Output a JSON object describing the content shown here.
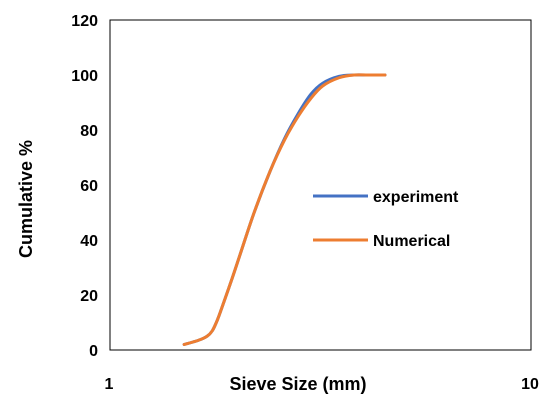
{
  "chart_data": {
    "type": "line",
    "title": "",
    "xlabel": "Sieve Size (mm)",
    "ylabel": "Cumulative %",
    "x_scale": "log",
    "xlim": [
      1,
      10
    ],
    "ylim": [
      0,
      120
    ],
    "x_ticks": [
      "1",
      "10"
    ],
    "y_ticks": [
      "0",
      "20",
      "40",
      "60",
      "80",
      "100",
      "120"
    ],
    "grid": false,
    "legend_position": "right",
    "series": [
      {
        "name": "experiment",
        "color": "#4472C4",
        "x": [
          1.5,
          1.62,
          1.7,
          1.75,
          1.8,
          1.85,
          1.95,
          2.05,
          2.2,
          2.4,
          2.6,
          2.8,
          3.0,
          3.2,
          3.5,
          3.8,
          4.1,
          4.5
        ],
        "y": [
          2,
          3.5,
          5,
          7,
          11,
          16,
          26,
          36,
          50,
          65,
          77,
          86,
          93,
          97,
          99.5,
          100,
          100,
          100
        ]
      },
      {
        "name": "Numerical",
        "color": "#ED7D31",
        "x": [
          1.5,
          1.62,
          1.7,
          1.75,
          1.8,
          1.85,
          1.95,
          2.05,
          2.2,
          2.4,
          2.6,
          2.8,
          3.0,
          3.2,
          3.5,
          3.8,
          4.1,
          4.5
        ],
        "y": [
          2,
          3.5,
          5,
          7,
          11,
          16,
          26,
          36,
          50,
          65,
          76.5,
          85,
          91.5,
          96,
          99,
          100,
          100,
          100
        ]
      }
    ]
  }
}
